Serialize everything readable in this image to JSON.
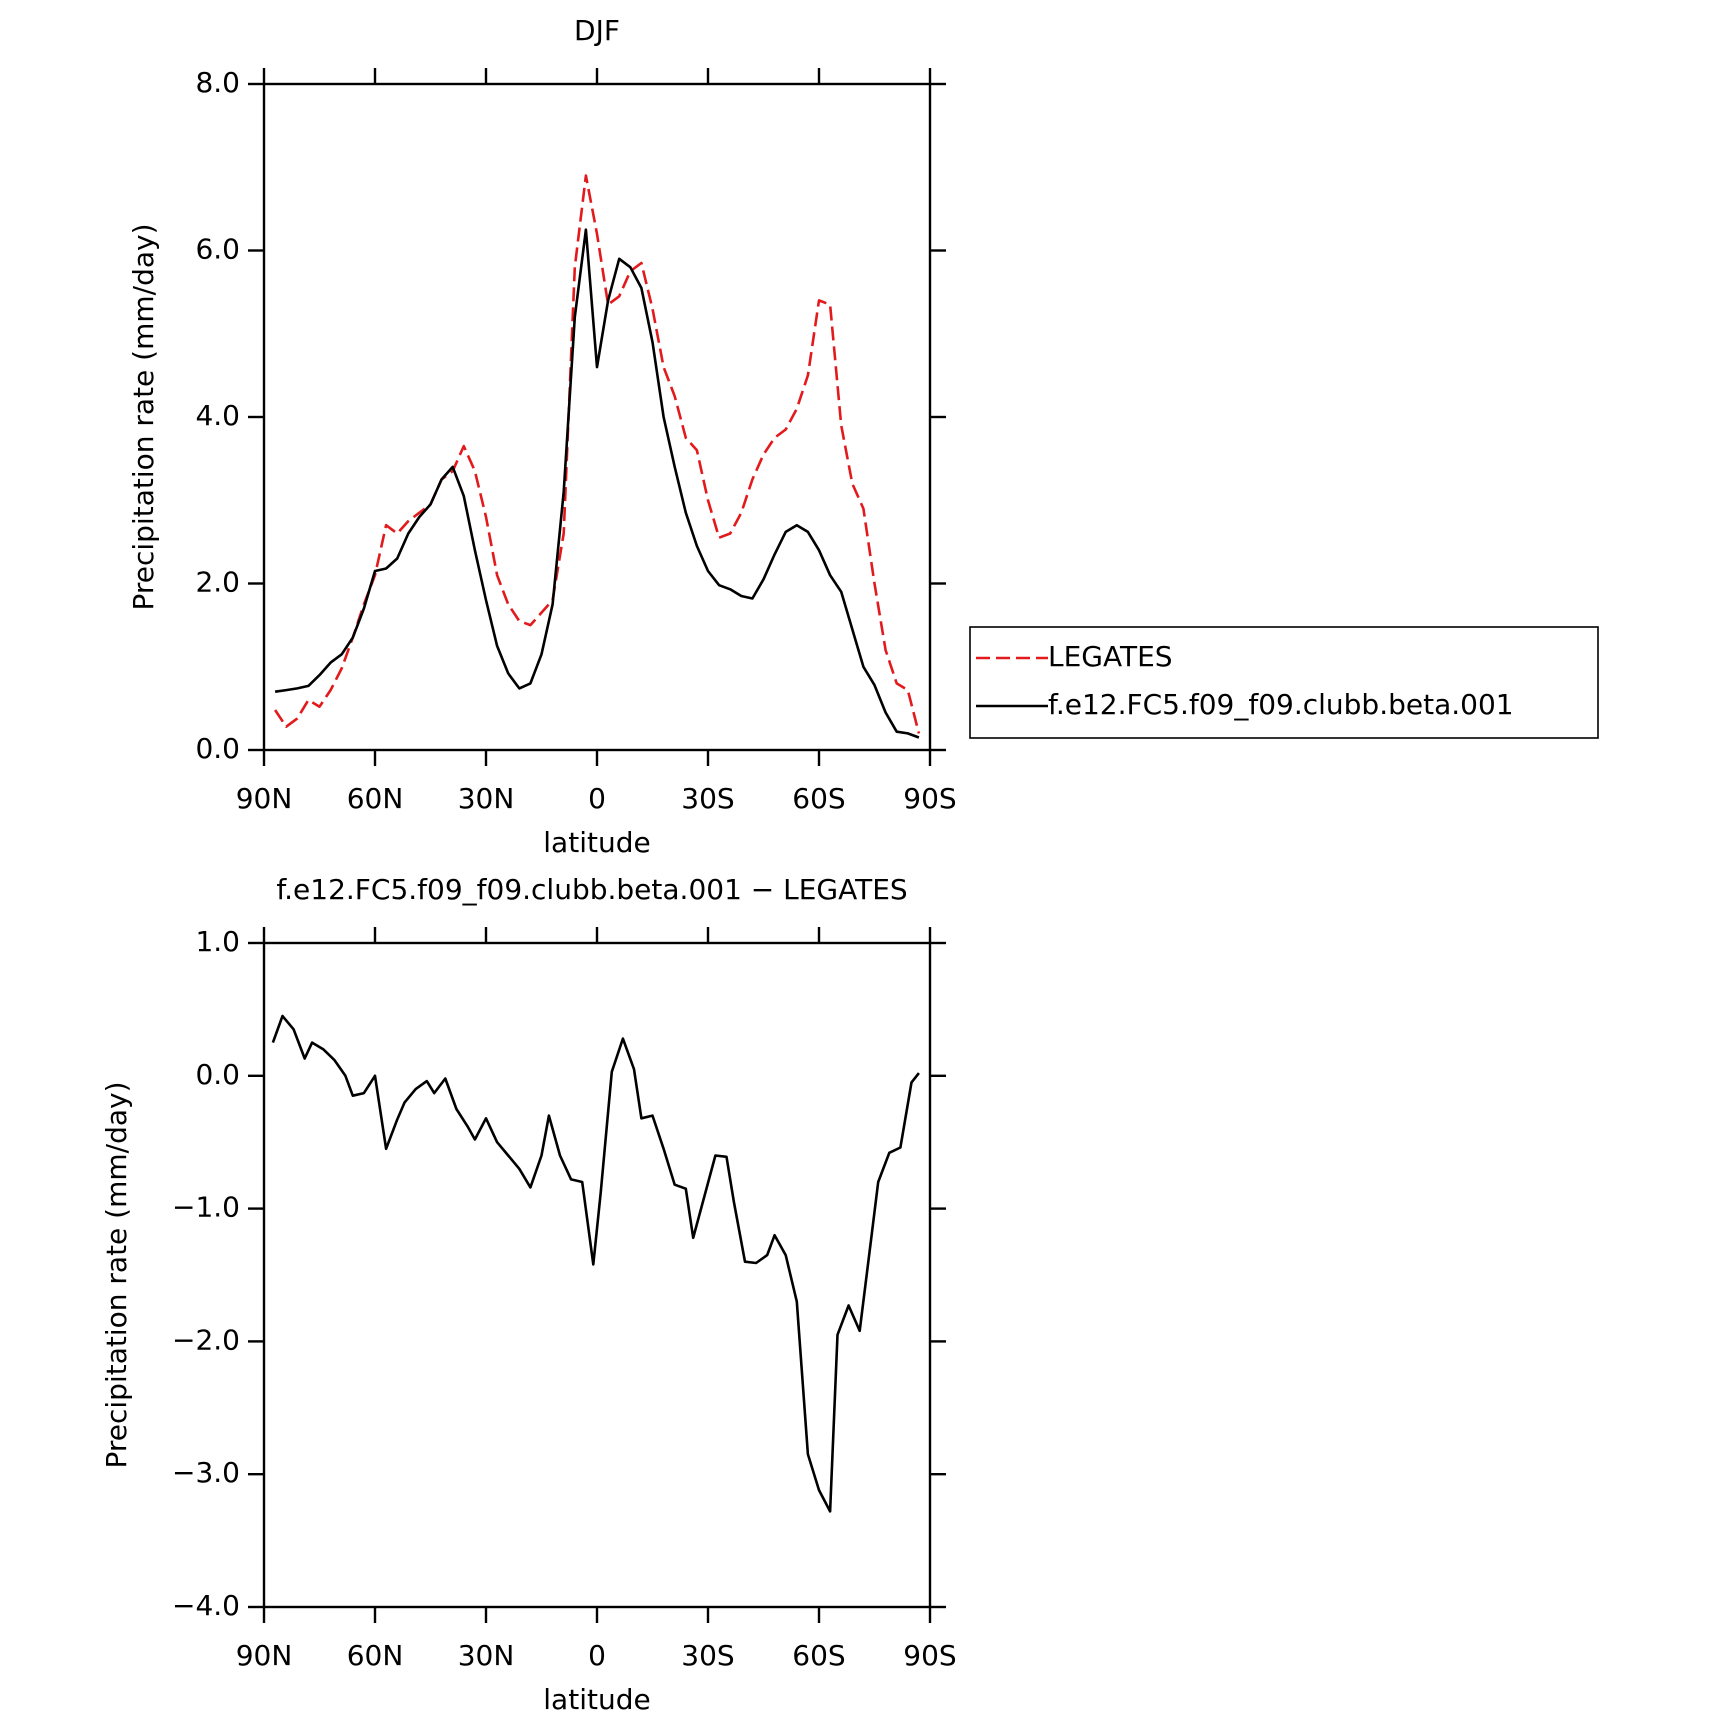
{
  "chart_data": [
    {
      "type": "line",
      "title": "DJF",
      "x_label": "latitude",
      "y_label": "Precipitation rate (mm/day)",
      "x": [
        87,
        84,
        81,
        78,
        75,
        72,
        69,
        66,
        63,
        60,
        57,
        54,
        51,
        48,
        45,
        42,
        39,
        36,
        33,
        30,
        27,
        24,
        21,
        18,
        15,
        12,
        9,
        6,
        3,
        0,
        -3,
        -6,
        -9,
        -12,
        -15,
        -18,
        -21,
        -24,
        -27,
        -30,
        -33,
        -36,
        -39,
        -42,
        -45,
        -48,
        -51,
        -54,
        -57,
        -60,
        -63,
        -66,
        -69,
        -72,
        -75,
        -78,
        -81,
        -84,
        -87
      ],
      "series": [
        {
          "name": "LEGATES",
          "color": "#e31a1c",
          "dashed": true,
          "values": [
            0.48,
            0.28,
            0.38,
            0.6,
            0.52,
            0.72,
            0.98,
            1.35,
            1.75,
            2.1,
            2.7,
            2.6,
            2.75,
            2.85,
            2.95,
            3.25,
            3.35,
            3.65,
            3.35,
            2.8,
            2.1,
            1.75,
            1.55,
            1.5,
            1.65,
            1.8,
            2.6,
            5.8,
            6.9,
            6.2,
            5.35,
            5.45,
            5.75,
            5.85,
            5.3,
            4.6,
            4.25,
            3.75,
            3.6,
            3.0,
            2.55,
            2.6,
            2.85,
            3.25,
            3.55,
            3.75,
            3.85,
            4.1,
            4.5,
            5.4,
            5.35,
            3.9,
            3.2,
            2.9,
            2.0,
            1.2,
            0.8,
            0.72,
            0.2
          ]
        },
        {
          "name": "f.e12.FC5.f09_f09.clubb.beta.001",
          "color": "#000000",
          "dashed": false,
          "values": [
            0.7,
            0.72,
            0.74,
            0.77,
            0.9,
            1.05,
            1.15,
            1.35,
            1.7,
            2.15,
            2.18,
            2.3,
            2.6,
            2.8,
            2.95,
            3.25,
            3.4,
            3.05,
            2.4,
            1.8,
            1.25,
            0.92,
            0.74,
            0.8,
            1.15,
            1.75,
            3.1,
            5.2,
            6.25,
            4.6,
            5.4,
            5.9,
            5.8,
            5.55,
            4.9,
            4.0,
            3.4,
            2.85,
            2.45,
            2.15,
            1.98,
            1.93,
            1.85,
            1.82,
            2.05,
            2.35,
            2.62,
            2.7,
            2.62,
            2.4,
            2.1,
            1.9,
            1.45,
            1.0,
            0.78,
            0.45,
            0.22,
            0.2,
            0.15
          ]
        }
      ],
      "xlim": [
        90,
        -90
      ],
      "xticks": [
        {
          "value": 90,
          "label": "90N"
        },
        {
          "value": 60,
          "label": "60N"
        },
        {
          "value": 30,
          "label": "30N"
        },
        0,
        {
          "value": -30,
          "label": "30S"
        },
        {
          "value": -60,
          "label": "60S"
        },
        {
          "value": -90,
          "label": "90S"
        }
      ],
      "ylim": [
        0,
        8
      ],
      "yticks": [
        {
          "value": 0,
          "label": "0.0"
        },
        {
          "value": 2,
          "label": "2.0"
        },
        {
          "value": 4,
          "label": "4.0"
        },
        {
          "value": 6,
          "label": "6.0"
        },
        {
          "value": 8,
          "label": "8.0"
        }
      ],
      "legend": "right"
    },
    {
      "type": "line",
      "title": "f.e12.FC5.f09_f09.clubb.beta.001 − LEGATES",
      "x_label": "latitude",
      "y_label": "Precipitation rate (mm/day)",
      "x": [
        87.6,
        85,
        82,
        79,
        77,
        74,
        71,
        68,
        66,
        63,
        60,
        57,
        54,
        52,
        49,
        46,
        44,
        41,
        38,
        35,
        33,
        30,
        27,
        24,
        21,
        18,
        15,
        13,
        10,
        7,
        4,
        1,
        -1,
        -4,
        -7,
        -10,
        -12,
        -15,
        -18,
        -21,
        -24,
        -26,
        -32,
        -35,
        -37,
        -40,
        -43,
        -46,
        -48,
        -51,
        -54,
        -57,
        -60,
        -63,
        -65,
        -68,
        -71,
        -74,
        -76,
        -79,
        -82,
        -85,
        -87
      ],
      "series": [
        {
          "color": "#000000",
          "dashed": false,
          "values": [
            0.25,
            0.45,
            0.35,
            0.13,
            0.25,
            0.2,
            0.12,
            0.0,
            -0.15,
            -0.13,
            0.0,
            -0.55,
            -0.33,
            -0.2,
            -0.1,
            -0.04,
            -0.13,
            -0.02,
            -0.25,
            -0.38,
            -0.48,
            -0.32,
            -0.5,
            -0.6,
            -0.7,
            -0.84,
            -0.6,
            -0.3,
            -0.6,
            -0.78,
            -0.8,
            -1.42,
            -0.88,
            0.03,
            0.28,
            0.05,
            -0.32,
            -0.3,
            -0.55,
            -0.82,
            -0.85,
            -1.22,
            -0.6,
            -0.61,
            -0.95,
            -1.4,
            -1.41,
            -1.35,
            -1.2,
            -1.35,
            -1.7,
            -2.85,
            -3.12,
            -3.28,
            -1.95,
            -1.73,
            -1.92,
            -1.25,
            -0.8,
            -0.58,
            -0.54,
            -0.05,
            0.02
          ]
        }
      ],
      "xlim": [
        90,
        -90
      ],
      "xticks": [
        {
          "value": 90,
          "label": "90N"
        },
        {
          "value": 60,
          "label": "60N"
        },
        {
          "value": 30,
          "label": "30N"
        },
        0,
        {
          "value": -30,
          "label": "30S"
        },
        {
          "value": -60,
          "label": "60S"
        },
        {
          "value": -90,
          "label": "90S"
        }
      ],
      "ylim": [
        -4,
        1
      ],
      "yticks": [
        {
          "value": -4,
          "label": "−4.0"
        },
        {
          "value": -3,
          "label": "−3.0"
        },
        {
          "value": -2,
          "label": "−2.0"
        },
        {
          "value": -1,
          "label": "−1.0"
        },
        {
          "value": 0,
          "label": "0.0"
        },
        {
          "value": 1,
          "label": "1.0"
        }
      ]
    }
  ]
}
